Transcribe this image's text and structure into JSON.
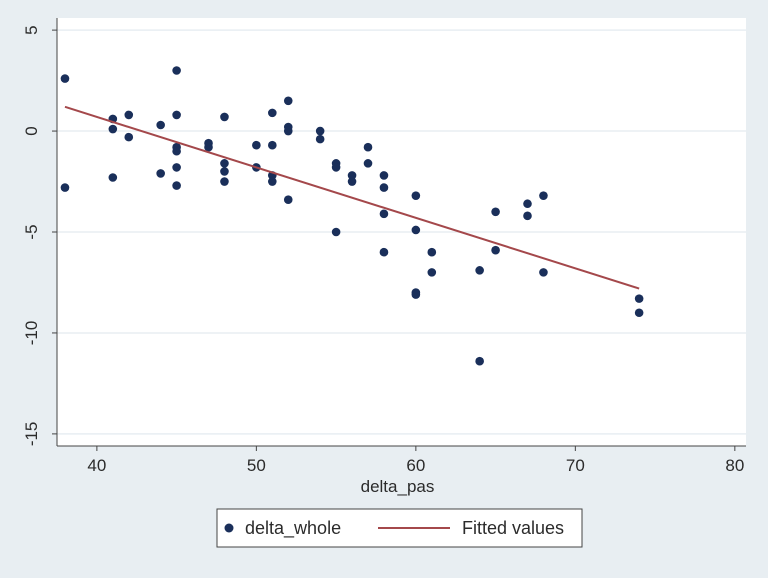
{
  "chart_data": {
    "type": "scatter",
    "title": "",
    "xlabel": "delta_pas",
    "ylabel": "",
    "xlim": [
      37.5,
      80.7
    ],
    "ylim": [
      -15.6,
      5.6
    ],
    "xticks": [
      40,
      50,
      60,
      70,
      80
    ],
    "yticks": [
      5,
      0,
      -5,
      -10,
      -15
    ],
    "grid": "horizontal",
    "legend_position": "bottom",
    "colors": {
      "background": "#e8eef2",
      "plot_area": "#ffffff",
      "grid": "#e8eef2",
      "points": "#1a2f5a",
      "fit_line": "#a4484b",
      "axis": "#444444"
    },
    "series": [
      {
        "name": "delta_whole",
        "kind": "scatter",
        "points": [
          [
            38,
            2.6
          ],
          [
            38,
            -2.8
          ],
          [
            41,
            0.6
          ],
          [
            41,
            0.1
          ],
          [
            41,
            -2.3
          ],
          [
            42,
            0.8
          ],
          [
            42,
            -0.3
          ],
          [
            44,
            0.3
          ],
          [
            44,
            -2.1
          ],
          [
            45,
            3.0
          ],
          [
            45,
            0.8
          ],
          [
            45,
            -0.8
          ],
          [
            45,
            -1.0
          ],
          [
            45,
            -1.8
          ],
          [
            45,
            -2.7
          ],
          [
            47,
            -0.6
          ],
          [
            47,
            -0.8
          ],
          [
            48,
            0.7
          ],
          [
            48,
            -1.6
          ],
          [
            48,
            -2.0
          ],
          [
            48,
            -2.5
          ],
          [
            50,
            -0.7
          ],
          [
            50,
            -1.8
          ],
          [
            51,
            0.9
          ],
          [
            51,
            -0.7
          ],
          [
            51,
            -2.2
          ],
          [
            51,
            -2.5
          ],
          [
            52,
            1.5
          ],
          [
            52,
            0.2
          ],
          [
            52,
            0.0
          ],
          [
            52,
            -3.4
          ],
          [
            54,
            0.0
          ],
          [
            54,
            -0.4
          ],
          [
            55,
            -1.6
          ],
          [
            55,
            -1.8
          ],
          [
            55,
            -5.0
          ],
          [
            56,
            -2.2
          ],
          [
            56,
            -2.5
          ],
          [
            57,
            -0.8
          ],
          [
            57,
            -1.6
          ],
          [
            58,
            -2.2
          ],
          [
            58,
            -2.8
          ],
          [
            58,
            -4.1
          ],
          [
            58,
            -6.0
          ],
          [
            60,
            -3.2
          ],
          [
            60,
            -4.9
          ],
          [
            60,
            -8.0
          ],
          [
            60,
            -8.1
          ],
          [
            61,
            -6.0
          ],
          [
            61,
            -7.0
          ],
          [
            64,
            -6.9
          ],
          [
            64,
            -11.4
          ],
          [
            65,
            -4.0
          ],
          [
            65,
            -5.9
          ],
          [
            67,
            -3.6
          ],
          [
            67,
            -4.2
          ],
          [
            68,
            -3.2
          ],
          [
            68,
            -7.0
          ],
          [
            74,
            -8.3
          ],
          [
            74,
            -9.0
          ]
        ]
      },
      {
        "name": "Fitted values",
        "kind": "line",
        "points": [
          [
            38,
            1.2
          ],
          [
            74,
            -7.8
          ]
        ]
      }
    ]
  }
}
